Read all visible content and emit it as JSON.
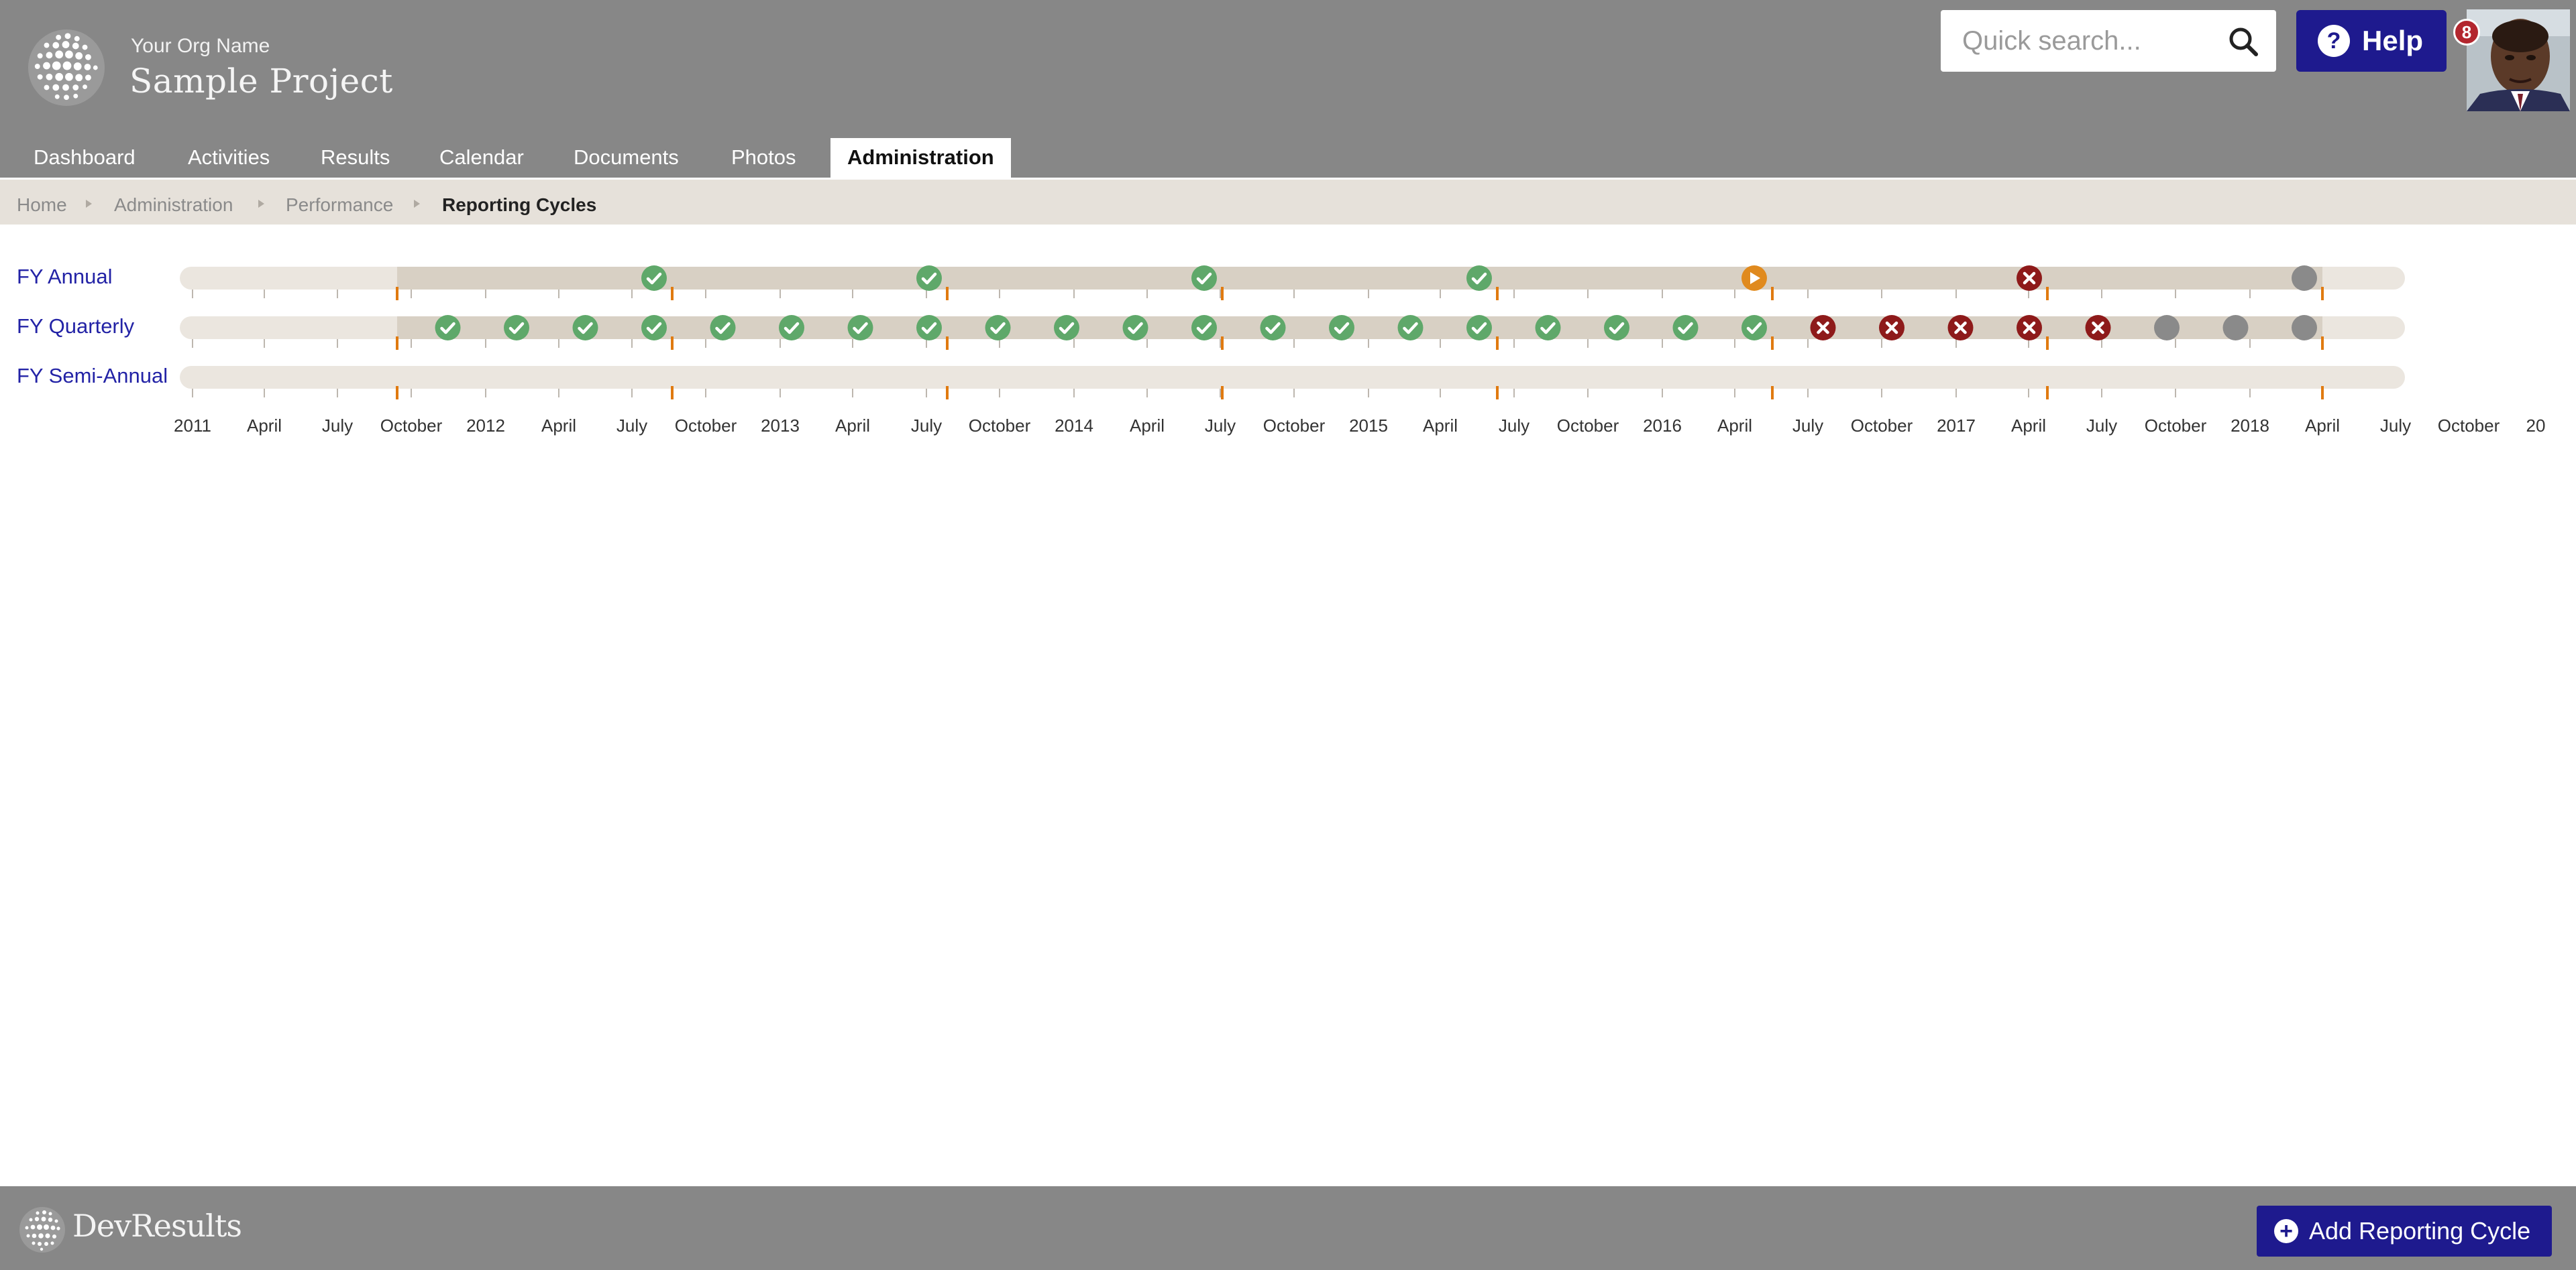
{
  "header": {
    "org_name": "Your Org Name",
    "project_name": "Sample Project",
    "search_placeholder": "Quick search...",
    "help_label": "Help",
    "notification_count": "8",
    "logo_icon": "globe-dots-icon"
  },
  "nav": {
    "tabs": [
      {
        "label": "Dashboard",
        "active": false
      },
      {
        "label": "Activities",
        "active": false
      },
      {
        "label": "Results",
        "active": false
      },
      {
        "label": "Calendar",
        "active": false
      },
      {
        "label": "Documents",
        "active": false
      },
      {
        "label": "Photos",
        "active": false
      },
      {
        "label": "Administration",
        "active": true
      }
    ]
  },
  "breadcrumb": {
    "items": [
      "Home",
      "Administration",
      "Performance"
    ],
    "current": "Reporting Cycles"
  },
  "timeline": {
    "axis_labels": [
      "2011",
      "April",
      "July",
      "October",
      "2012",
      "April",
      "July",
      "October",
      "2013",
      "April",
      "July",
      "October",
      "2014",
      "April",
      "July",
      "October",
      "2015",
      "April",
      "July",
      "October",
      "2016",
      "April",
      "July",
      "October",
      "2017",
      "April",
      "July",
      "October",
      "2018",
      "April",
      "July",
      "October",
      "20"
    ],
    "cycles": [
      {
        "label": "FY Annual",
        "events": [
          "complete",
          "complete",
          "complete",
          "complete",
          "current",
          "overdue",
          "pending"
        ]
      },
      {
        "label": "FY Quarterly",
        "events": [
          "complete",
          "complete",
          "complete",
          "complete",
          "complete",
          "complete",
          "complete",
          "complete",
          "complete",
          "complete",
          "complete",
          "complete",
          "complete",
          "complete",
          "complete",
          "complete",
          "complete",
          "complete",
          "complete",
          "complete",
          "overdue",
          "overdue",
          "overdue",
          "overdue",
          "overdue",
          "pending",
          "pending",
          "pending"
        ]
      },
      {
        "label": "FY Semi-Annual",
        "events": []
      }
    ],
    "colors": {
      "complete": "#5fa86a",
      "overdue": "#8e1a1a",
      "current": "#e08a1e",
      "pending": "#8a8a8a",
      "track": "#ebe6df",
      "active_track": "#d8d0c4",
      "fiscal_marker": "#e07a10"
    }
  },
  "footer": {
    "brand": "DevResults",
    "add_button_label": "Add Reporting Cycle"
  }
}
